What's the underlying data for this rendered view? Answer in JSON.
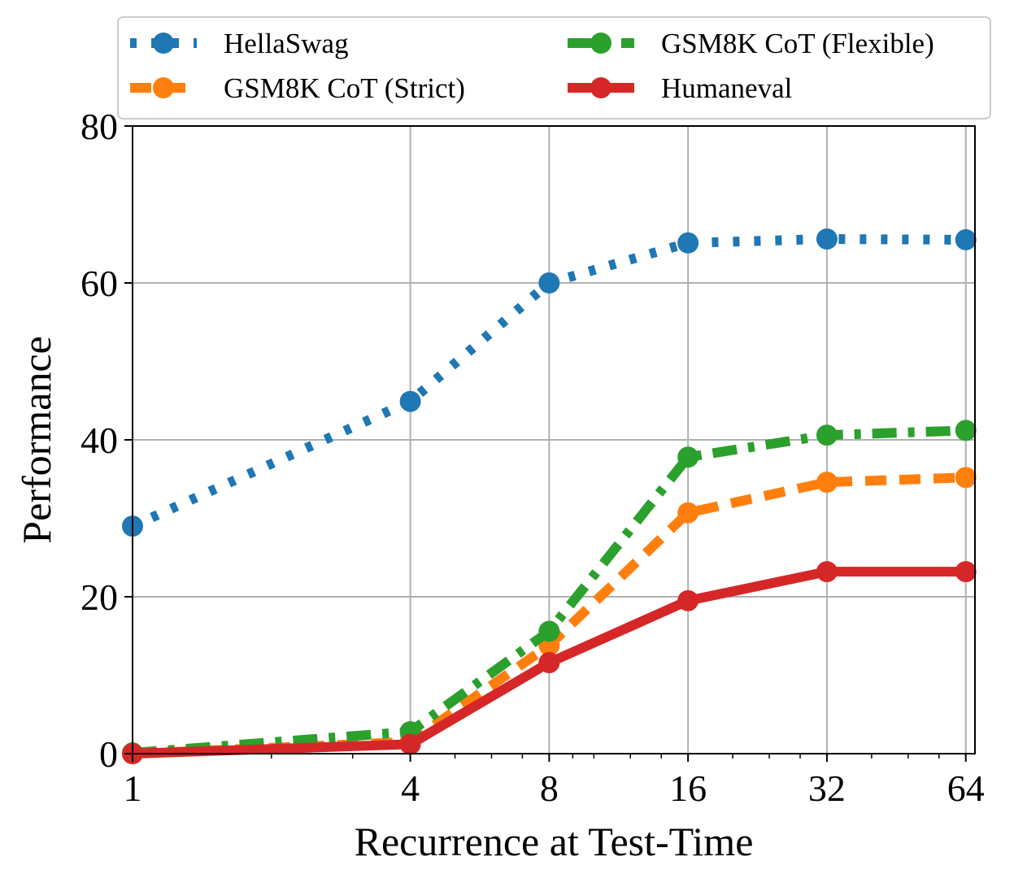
{
  "chart_data": {
    "type": "line",
    "xscale": "log2",
    "x": [
      1,
      4,
      8,
      16,
      32,
      64
    ],
    "xticks": [
      "1",
      "4",
      "8",
      "16",
      "32",
      "64"
    ],
    "yticks": [
      "0",
      "20",
      "40",
      "60",
      "80"
    ],
    "xlabel": "Recurrence at Test-Time",
    "ylabel": "Performance",
    "ylim": [
      0,
      80
    ],
    "grid": true,
    "legend_position": "top",
    "series": [
      {
        "name": "HellaSwag",
        "values": [
          29.0,
          44.9,
          60.0,
          65.1,
          65.6,
          65.5
        ],
        "color": "#1f77b4",
        "linestyle": "dotted"
      },
      {
        "name": "GSM8K CoT (Flexible)",
        "values": [
          0.1,
          2.8,
          15.6,
          37.8,
          40.6,
          41.2
        ],
        "color": "#2ca02c",
        "linestyle": "dashdot"
      },
      {
        "name": "GSM8K CoT (Strict)",
        "values": [
          0.0,
          1.5,
          13.8,
          30.7,
          34.6,
          35.2
        ],
        "color": "#ff7f0e",
        "linestyle": "dashed"
      },
      {
        "name": "Humaneval",
        "values": [
          0.0,
          1.2,
          11.6,
          19.5,
          23.2,
          23.2
        ],
        "color": "#d62728",
        "linestyle": "solid"
      }
    ]
  }
}
